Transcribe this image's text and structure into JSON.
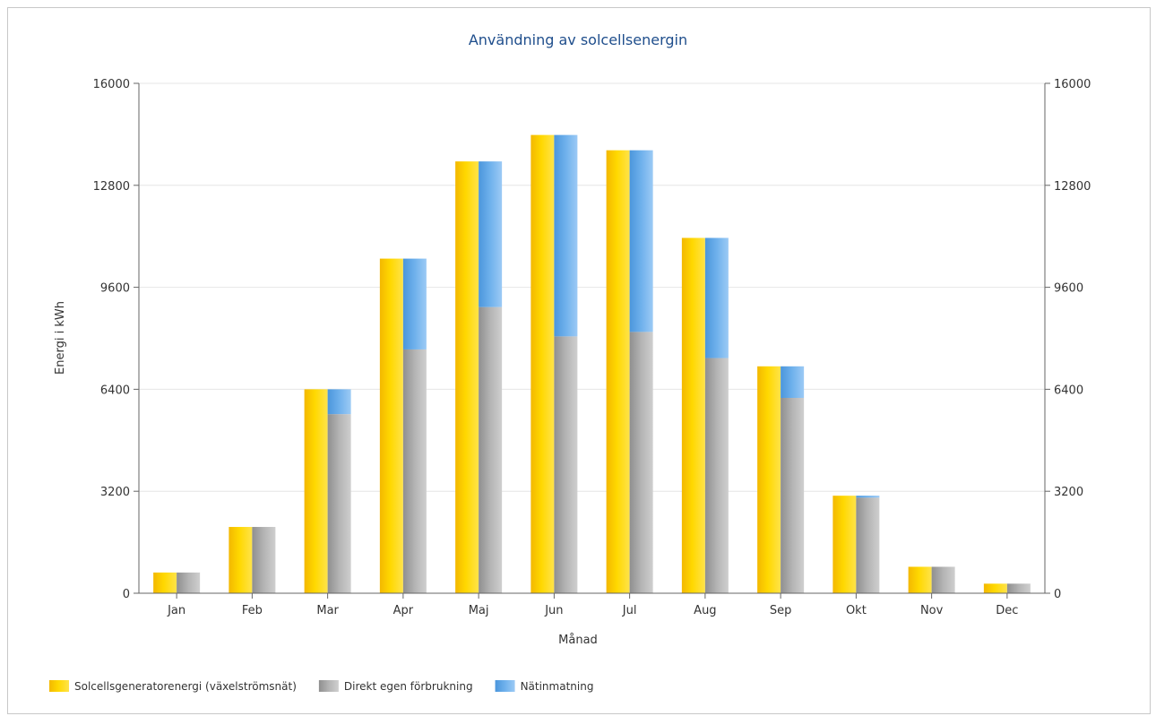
{
  "chart_data": {
    "type": "bar",
    "title": "Användning av solcellsenergin",
    "xlabel": "Månad",
    "ylabel": "Energi i kWh",
    "ylim": [
      0,
      16000
    ],
    "yticks": [
      "0",
      "3200",
      "6400",
      "9600",
      "12800",
      "16000"
    ],
    "grid": true,
    "legend_position": "bottom-left",
    "categories": [
      "Jan",
      "Feb",
      "Mar",
      "Apr",
      "Maj",
      "Jun",
      "Jul",
      "Aug",
      "Sep",
      "Okt",
      "Nov",
      "Dec"
    ],
    "series": [
      {
        "name": "Solcellsgeneratorenergi (växelströmsnät)",
        "color": "#f5c400",
        "stack": "a",
        "values": [
          650,
          2080,
          6400,
          10500,
          13550,
          14380,
          13900,
          11150,
          7120,
          3060,
          830,
          300
        ]
      },
      {
        "name": "Direkt egen förbrukning",
        "color": "#a9a9a9",
        "stack": "b",
        "values": [
          650,
          2080,
          5620,
          7650,
          8980,
          8060,
          8200,
          7380,
          6130,
          3000,
          830,
          300
        ]
      },
      {
        "name": "Nätinmatning",
        "color": "#5fa8e8",
        "stack": "b",
        "values": [
          0,
          0,
          780,
          2850,
          4570,
          6320,
          5700,
          3770,
          990,
          60,
          0,
          0
        ]
      }
    ]
  }
}
